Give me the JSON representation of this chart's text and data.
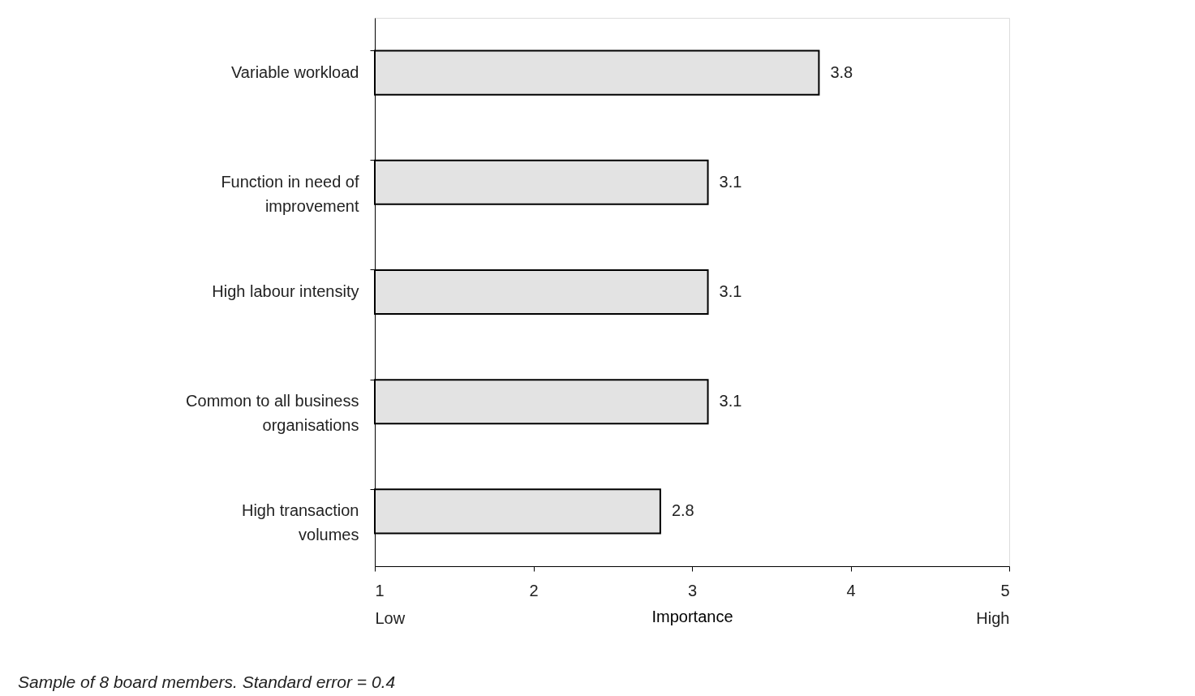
{
  "chart_data": {
    "type": "bar",
    "orientation": "horizontal",
    "categories": [
      "Variable workload",
      "Function in need of improvement",
      "High labour intensity",
      "Common to all business organisations",
      "High transaction volumes"
    ],
    "values": [
      3.8,
      3.1,
      3.1,
      3.1,
      2.8
    ],
    "color": "#e3e3e3",
    "data_labels": true,
    "xlabel": "Importance",
    "xlim": [
      1,
      5
    ],
    "xticks": [
      {
        "value": 1,
        "label": "1\nLow"
      },
      2,
      3,
      4,
      {
        "value": 5,
        "label": "5\nHigh"
      }
    ],
    "grid": false,
    "annotations": [
      "Sample of 8 board members. Standard error = 0.4"
    ]
  }
}
